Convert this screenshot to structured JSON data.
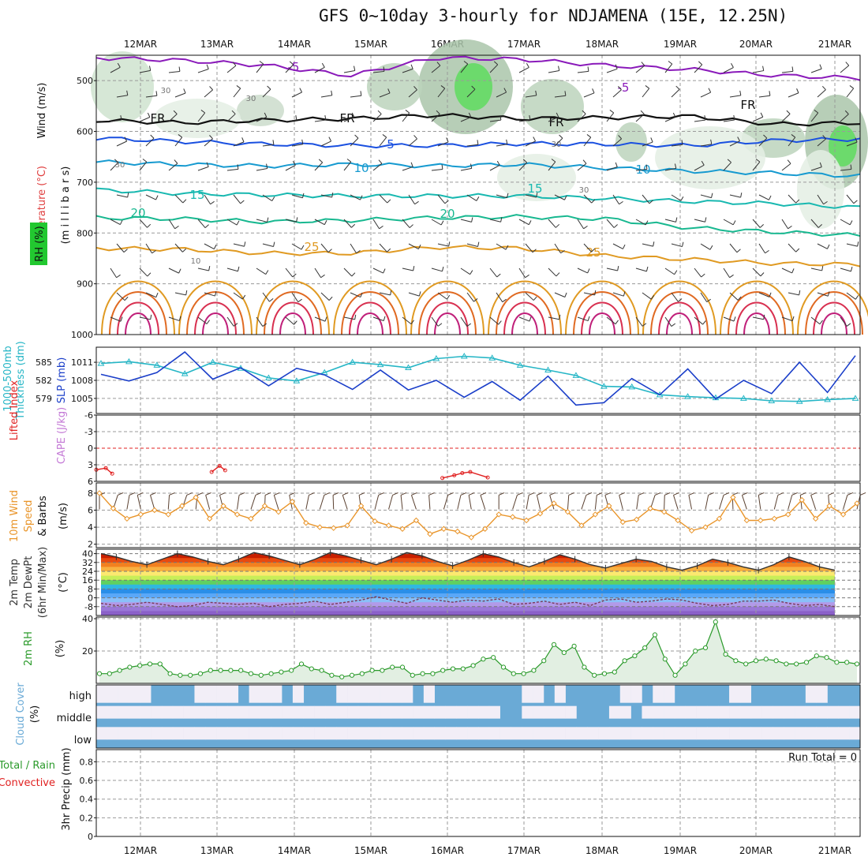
{
  "title": "GFS 0~10day 3-hourly for NDJAMENA (15E, 12.25N)",
  "dates": [
    "12MAR",
    "13MAR",
    "14MAR",
    "15MAR",
    "16MAR",
    "17MAR",
    "18MAR",
    "19MAR",
    "20MAR",
    "21MAR"
  ],
  "labels": {
    "upper": {
      "wind": "Wind (m/s)",
      "temperature": "Temperature (°C)",
      "rh": "RH (%)",
      "unit": "(m i l l i b a r s)",
      "contour_temps": [
        "-5",
        "-5",
        "FR",
        "FR",
        "FR",
        "FR",
        "5",
        "10",
        "10",
        "15",
        "15",
        "20",
        "20",
        "25",
        "25"
      ],
      "rh_contours": [
        "30",
        "30",
        "30",
        "30",
        "10",
        "30"
      ]
    },
    "slp": {
      "thickness": "1000-500mb",
      "thickness2": "Thickness (dm)",
      "slp": "SLP (mb)"
    },
    "cape": {
      "lifted": "Lifted Index",
      "cape": "CAPE (J/kg)"
    },
    "wind10": {
      "line1": "10m Wind",
      "line2": "Speed",
      "line3": "& Barbs",
      "unit": "(m/s)"
    },
    "temp2m": {
      "line1": "2m Temp",
      "line2": "2m DewPt",
      "line3": "(6hr Min/Max)",
      "unit": "(°C)"
    },
    "rh2m": {
      "label": "2m RH",
      "unit": "(%)"
    },
    "cloud": {
      "label": "Cloud Cover",
      "unit": "(%)",
      "levels": [
        "high",
        "middle",
        "low"
      ]
    },
    "precip": {
      "total": "Total / Rain",
      "conv": "Convective",
      "unit": "3hr Precip (mm)",
      "run_total": "Run Total = 0"
    }
  },
  "colors": {
    "thickness": "#26b6c6",
    "slp": "#1a3ec9",
    "lifted": "#e02020",
    "cape": "#c47ad6",
    "wind10": "#e9952a",
    "rh2m": "#2a9a2a",
    "cloud": "#6aaad6",
    "cloud_clear": "#f2eef7",
    "temp_label": "#e04040",
    "rh_label_bg": "#22c830"
  },
  "chart_data": [
    {
      "type": "line",
      "panel": "upper-air",
      "title": "",
      "ylabel": "millibars",
      "yticks": [
        500,
        600,
        700,
        800,
        900,
        1000
      ],
      "ylim": [
        1000,
        450
      ],
      "grid": true,
      "x": [
        "12MAR",
        "13MAR",
        "14MAR",
        "15MAR",
        "16MAR",
        "17MAR",
        "18MAR",
        "19MAR",
        "20MAR",
        "21MAR"
      ],
      "isotherms": [
        {
          "name": "-5",
          "values": [
            455,
            460,
            470,
            490,
            455,
            458,
            470,
            478,
            490,
            495
          ]
        },
        {
          "name": "FR",
          "values": [
            578,
            583,
            578,
            575,
            568,
            575,
            573,
            570,
            586,
            583
          ]
        },
        {
          "name": "5",
          "values": [
            613,
            620,
            625,
            628,
            628,
            624,
            625,
            628,
            618,
            615
          ]
        },
        {
          "name": "10",
          "values": [
            660,
            665,
            668,
            665,
            668,
            665,
            672,
            678,
            682,
            688
          ]
        },
        {
          "name": "15",
          "values": [
            715,
            722,
            725,
            727,
            727,
            727,
            732,
            738,
            742,
            750
          ]
        },
        {
          "name": "20",
          "values": [
            770,
            772,
            778,
            775,
            770,
            768,
            772,
            790,
            798,
            805
          ]
        },
        {
          "name": "25",
          "values": [
            830,
            832,
            840,
            840,
            828,
            830,
            845,
            852,
            860,
            862
          ]
        }
      ]
    },
    {
      "type": "line",
      "panel": "slp-thickness",
      "yticks_left": [
        579,
        582,
        585
      ],
      "yticks_right": [
        1005,
        1008,
        1011
      ],
      "grid": true,
      "series": [
        {
          "name": "1000-500mb Thickness",
          "values": [
            1010.8,
            1011.1,
            1010.5,
            1009.1,
            1011.0,
            1010.0,
            1008.4,
            1007.9,
            1009.3,
            1011.0,
            1010.6,
            1010.1,
            1011.6,
            1012.0,
            1011.7,
            1010.5,
            1009.7,
            1008.8,
            1007.0,
            1006.9,
            1005.6,
            1005.3,
            1005.1,
            1005.0,
            1004.6,
            1004.5,
            1004.8,
            1005.0
          ]
        },
        {
          "name": "SLP",
          "values": [
            1009.0,
            1007.9,
            1009.3,
            1012.7,
            1008.2,
            1010.1,
            1007.1,
            1010.0,
            1008.9,
            1006.5,
            1009.7,
            1006.4,
            1008.0,
            1005.2,
            1007.8,
            1004.7,
            1008.7,
            1003.9,
            1004.3,
            1008.3,
            1005.6,
            1009.9,
            1004.9,
            1008.0,
            1005.8,
            1011.0,
            1006.0,
            1012.1
          ]
        }
      ]
    },
    {
      "type": "line",
      "panel": "lifted-index-cape",
      "yticks": [
        -6,
        -3,
        0,
        3,
        6
      ],
      "ylim": [
        -6,
        6
      ],
      "grid": true,
      "series": [
        {
          "name": "Lifted Index",
          "segments": [
            {
              "x": [
                0.0,
                0.12,
                0.2
              ],
              "values": [
                3.9,
                3.6,
                4.6
              ]
            },
            {
              "x": [
                1.45,
                1.55,
                1.62
              ],
              "values": [
                4.3,
                3.2,
                4.0
              ]
            },
            {
              "name": "x",
              "x": [
                4.35,
                4.5,
                4.6,
                4.7,
                4.92
              ],
              "values": [
                5.4,
                4.9,
                4.5,
                4.3,
                5.3
              ]
            }
          ]
        }
      ]
    },
    {
      "type": "line",
      "panel": "10m-wind",
      "yticks": [
        2,
        4,
        6,
        8
      ],
      "ylim": [
        2,
        9.2
      ],
      "grid": true,
      "series": [
        {
          "name": "10m Wind Speed",
          "values": [
            8.0,
            6.2,
            5.0,
            5.5,
            6.0,
            5.5,
            6.5,
            7.5,
            5.0,
            6.5,
            5.5,
            5.0,
            6.5,
            5.8,
            7.0,
            4.5,
            4.0,
            3.9,
            4.2,
            6.5,
            4.7,
            4.2,
            3.8,
            4.8,
            3.2,
            3.8,
            3.5,
            2.8,
            3.8,
            5.5,
            5.2,
            4.8,
            5.6,
            6.8,
            5.8,
            4.2,
            5.5,
            6.5,
            4.6,
            4.9,
            6.2,
            5.8,
            4.8,
            3.6,
            4.0,
            5.0,
            7.5,
            4.8,
            4.8,
            5.0,
            5.5,
            7.2,
            5.0,
            6.5,
            5.5,
            6.8
          ]
        }
      ]
    },
    {
      "type": "area",
      "panel": "2m-temp",
      "yticks": [
        -8,
        0,
        8,
        16,
        24,
        32,
        40
      ],
      "ylim": [
        -16,
        44
      ],
      "grid": true,
      "series": [
        {
          "name": "2m Temp",
          "values": [
            40,
            37,
            33,
            30,
            35,
            40,
            37,
            33,
            30,
            35,
            41,
            38,
            34,
            30,
            35,
            41,
            38,
            34,
            30,
            35,
            41,
            38,
            33,
            29,
            34,
            40,
            37,
            32,
            28,
            33,
            39,
            35,
            30,
            27,
            31,
            35,
            33,
            28,
            25,
            29,
            35,
            32,
            28,
            25,
            30,
            37,
            33,
            28,
            25
          ]
        },
        {
          "name": "2m DewPt",
          "values": [
            -5,
            -7,
            -6,
            -4,
            -6,
            -8,
            -7,
            -4,
            -5,
            -6,
            -5,
            -8,
            -6,
            -5,
            -3,
            -6,
            -4,
            -2,
            1,
            -2,
            -5,
            0,
            -2,
            -4,
            -2,
            -3,
            -1,
            -6,
            -5,
            -3,
            -6,
            -4,
            -7,
            -2,
            -1,
            -4,
            -3,
            -1,
            -2,
            -5,
            -7,
            -6,
            -3,
            -3,
            -2,
            -5,
            -7,
            -6,
            -8
          ]
        }
      ]
    },
    {
      "type": "area",
      "panel": "2m-rh",
      "yticks": [
        20,
        40
      ],
      "ylim": [
        0,
        41
      ],
      "grid": true,
      "series": [
        {
          "name": "2m RH",
          "values": [
            6,
            6,
            8,
            10,
            11,
            12,
            12,
            6,
            5,
            5,
            6,
            8,
            8,
            8,
            8,
            6,
            5,
            6,
            7,
            8,
            12,
            9,
            8,
            5,
            4,
            5,
            6,
            8,
            8,
            10,
            10,
            5,
            6,
            6,
            8,
            9,
            9,
            11,
            15,
            16,
            10,
            6,
            6,
            8,
            14,
            24,
            19,
            23,
            10,
            5,
            6,
            7,
            14,
            17,
            22,
            30,
            15,
            5,
            12,
            20,
            22,
            38,
            18,
            14,
            12,
            14,
            15,
            14,
            12,
            12,
            13,
            17,
            16,
            13,
            13,
            12
          ]
        }
      ]
    },
    {
      "type": "heatmap",
      "panel": "cloud-cover",
      "rows": [
        "high",
        "middle",
        "low"
      ],
      "high": [
        0,
        0,
        0,
        0,
        0,
        1,
        1,
        1,
        1,
        0,
        0,
        0,
        0,
        1,
        0,
        0,
        0,
        1,
        0,
        1,
        1,
        1,
        0,
        0,
        0,
        0,
        0,
        0,
        0,
        1,
        0,
        1,
        1,
        1,
        1,
        1,
        1,
        1,
        1,
        0,
        0,
        1,
        0,
        1,
        1,
        1,
        1,
        1,
        0,
        0,
        1,
        0,
        0,
        1,
        1,
        1,
        1,
        1,
        0,
        0,
        1,
        1,
        1,
        1,
        1,
        0,
        0,
        1,
        1,
        1
      ],
      "middle": [
        0,
        0,
        0,
        0,
        0,
        0,
        0,
        0,
        0,
        0,
        0,
        0,
        0,
        0,
        0,
        0,
        0,
        0,
        0,
        0,
        0,
        0,
        0,
        0,
        0,
        0,
        0,
        0,
        0,
        0,
        0,
        0,
        0,
        0,
        0,
        0,
        0,
        1,
        1,
        0,
        0,
        0,
        0,
        0,
        1,
        1,
        1,
        0,
        0,
        1,
        0,
        0,
        0,
        0,
        0,
        0,
        0,
        0,
        0,
        0,
        0,
        0,
        0,
        0,
        0,
        0,
        0,
        0,
        0,
        0
      ],
      "low": [
        0,
        0,
        0,
        0,
        0,
        0,
        0,
        0,
        0,
        0,
        0,
        0,
        0,
        0,
        0,
        0,
        0,
        0,
        0,
        0,
        0,
        0,
        0,
        0,
        0,
        0,
        0,
        0,
        0,
        0,
        0,
        0,
        0,
        0,
        0,
        0,
        0,
        0,
        0,
        0,
        0,
        0,
        0,
        0,
        0,
        0,
        0,
        0,
        0,
        0,
        0,
        0,
        0,
        0,
        0,
        0,
        0,
        0,
        0,
        0,
        0,
        0,
        0,
        0,
        0,
        0,
        0,
        0,
        0,
        0
      ]
    },
    {
      "type": "bar",
      "panel": "3hr-precip",
      "yticks": [
        0,
        0.2,
        0.4,
        0.6,
        0.8
      ],
      "ylim": [
        0,
        0.9
      ],
      "grid": true,
      "values": []
    }
  ]
}
